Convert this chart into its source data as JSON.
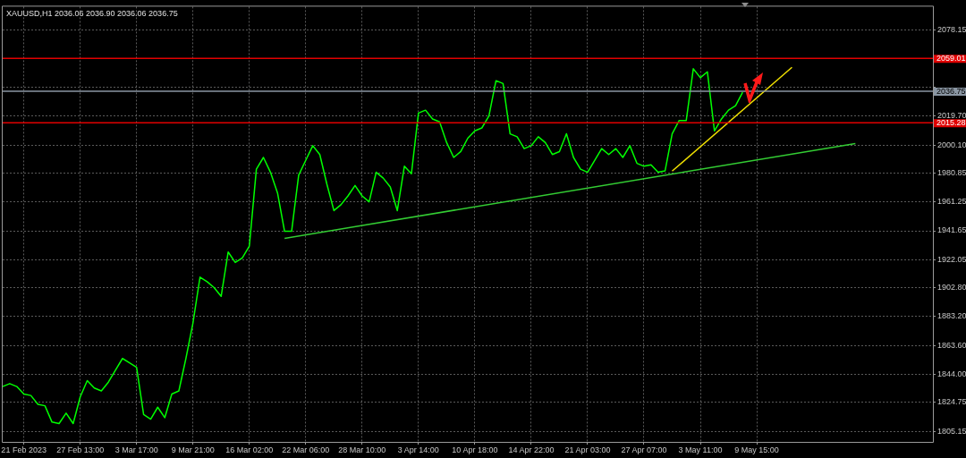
{
  "chart_data": {
    "type": "line",
    "title": "XAUUSD,H1 2036.06 2036.90 2036.06 2036.75",
    "categories": [
      null,
      null,
      null,
      "21 Feb 2023",
      null,
      null,
      null,
      null,
      null,
      null,
      null,
      "27 Feb 13:00",
      null,
      null,
      null,
      null,
      null,
      null,
      null,
      "3 Mar 17:00",
      null,
      null,
      null,
      null,
      null,
      null,
      null,
      "9 Mar 21:00",
      null,
      null,
      null,
      null,
      null,
      null,
      null,
      "16 Mar 02:00",
      null,
      null,
      null,
      null,
      null,
      null,
      null,
      "22 Mar 06:00",
      null,
      null,
      null,
      null,
      null,
      null,
      null,
      "28 Mar 10:00",
      null,
      null,
      null,
      null,
      null,
      null,
      null,
      "3 Apr 14:00",
      null,
      null,
      null,
      null,
      null,
      null,
      null,
      "10 Apr 18:00",
      null,
      null,
      null,
      null,
      null,
      null,
      null,
      "14 Apr 22:00",
      null,
      null,
      null,
      null,
      null,
      null,
      null,
      "21 Apr 03:00",
      null,
      null,
      null,
      null,
      null,
      null,
      null,
      "27 Apr 07:00",
      null,
      null,
      null,
      null,
      null,
      null,
      null,
      "3 May 11:00",
      null,
      null,
      null,
      null,
      null,
      null,
      null,
      "9 May 15:00",
      null,
      null,
      null,
      null,
      null,
      null,
      null,
      null,
      null,
      null,
      null,
      null,
      null,
      null,
      null,
      null,
      null,
      null,
      null,
      null,
      null,
      null,
      null,
      null,
      null
    ],
    "series": [
      {
        "color": "#00ff00",
        "values": [
          1835.6,
          1837.6,
          1835.6,
          1830.5,
          1829.5,
          1823.5,
          1822.5,
          1811.4,
          1810.4,
          1817.5,
          1810.4,
          1828.5,
          1839.6,
          1834.6,
          1832.6,
          1838.6,
          1846.7,
          1854.7,
          1851.7,
          1848.7,
          1816.5,
          1813.4,
          1821.5,
          1814.4,
          1830.5,
          1832.6,
          1854.7,
          1878.9,
          1910.1,
          1907.0,
          1903.0,
          1897.0,
          1927.2,
          1920.1,
          1923.2,
          1931.2,
          1983.6,
          1991.6,
          1981.5,
          1967.4,
          1941.3,
          1941.3,
          1979.5,
          1989.6,
          1999.6,
          1993.6,
          1973.5,
          1955.4,
          1959.4,
          1965.4,
          1972.5,
          1965.4,
          1961.4,
          1981.5,
          1977.5,
          1971.5,
          1955.4,
          1985.6,
          1980.5,
          2021.8,
          2023.8,
          2017.8,
          2015.8,
          2001.7,
          1991.6,
          1995.6,
          2004.7,
          2009.7,
          2011.7,
          2019.8,
          2043.9,
          2041.9,
          2007.7,
          2005.7,
          1997.6,
          1999.6,
          2005.7,
          2001.7,
          1993.6,
          1995.6,
          2007.7,
          1991.6,
          1983.6,
          1981.5,
          1989.6,
          1997.6,
          1993.6,
          1997.6,
          1991.6,
          1999.6,
          1987.6,
          1985.6,
          1986.6,
          1981.5,
          1982.5,
          2007.7,
          2016.8,
          2016.8,
          2052.0,
          2045.9,
          2049.9,
          2009.7,
          2017.8,
          2023.8,
          2026.8,
          2036.0,
          null,
          null,
          null,
          null,
          null,
          null,
          null,
          null,
          null,
          null,
          null,
          null,
          null,
          null,
          null,
          null,
          null,
          null,
          null,
          null,
          null,
          null,
          null,
          null,
          null,
          null,
          null
        ]
      },
      {
        "color": "#33cc33",
        "values": [
          null,
          null,
          null,
          null,
          null,
          null,
          null,
          null,
          null,
          null,
          null,
          null,
          null,
          null,
          null,
          null,
          null,
          null,
          null,
          null,
          null,
          null,
          null,
          null,
          null,
          null,
          null,
          null,
          null,
          null,
          null,
          null,
          null,
          null,
          null,
          null,
          null,
          null,
          null,
          null,
          1936.5,
          null,
          null,
          null,
          null,
          null,
          null,
          null,
          null,
          null,
          null,
          null,
          null,
          null,
          null,
          null,
          null,
          null,
          null,
          null,
          null,
          null,
          null,
          null,
          null,
          null,
          null,
          null,
          null,
          null,
          null,
          null,
          null,
          null,
          null,
          null,
          null,
          null,
          null,
          null,
          null,
          null,
          null,
          null,
          null,
          null,
          null,
          null,
          null,
          null,
          null,
          null,
          null,
          null,
          null,
          null,
          null,
          null,
          null,
          null,
          null,
          null,
          null,
          null,
          null,
          null,
          null,
          null,
          null,
          null,
          null,
          null,
          null,
          null,
          null,
          null,
          null,
          null,
          null,
          null,
          null,
          2001.0,
          null,
          null,
          null,
          null,
          null,
          null,
          null,
          null,
          null,
          null,
          null
        ]
      },
      {
        "color": "#f0e000",
        "values": [
          null,
          null,
          null,
          null,
          null,
          null,
          null,
          null,
          null,
          null,
          null,
          null,
          null,
          null,
          null,
          null,
          null,
          null,
          null,
          null,
          null,
          null,
          null,
          null,
          null,
          null,
          null,
          null,
          null,
          null,
          null,
          null,
          null,
          null,
          null,
          null,
          null,
          null,
          null,
          null,
          null,
          null,
          null,
          null,
          null,
          null,
          null,
          null,
          null,
          null,
          null,
          null,
          null,
          null,
          null,
          null,
          null,
          null,
          null,
          null,
          null,
          null,
          null,
          null,
          null,
          null,
          null,
          null,
          null,
          null,
          null,
          null,
          null,
          null,
          null,
          null,
          null,
          null,
          null,
          null,
          null,
          null,
          null,
          null,
          null,
          null,
          null,
          null,
          null,
          null,
          null,
          null,
          null,
          null,
          null,
          1982.3,
          null,
          null,
          null,
          null,
          null,
          null,
          null,
          null,
          null,
          null,
          null,
          null,
          null,
          null,
          null,
          null,
          2053.0,
          null,
          null,
          null,
          null,
          null,
          null,
          null,
          null,
          null,
          null,
          null,
          null,
          null,
          null,
          null,
          null,
          null,
          null,
          null,
          null
        ]
      }
    ],
    "ylim": [
      1797.9,
      2094.3
    ],
    "yticks": [
      2078.15,
      {
        "value": 2058.9,
        "label": null
      },
      {
        "value": 2039.3,
        "label": null
      },
      {
        "value": 2019.7,
        "label": "2019.70"
      },
      {
        "value": 2000.1,
        "label": "2000.10"
      },
      1980.85,
      1961.25,
      1941.65,
      1922.05,
      {
        "value": 1902.8,
        "label": "1902.80"
      },
      {
        "value": 1883.2,
        "label": "1883.20"
      },
      {
        "value": 1863.6,
        "label": "1863.60"
      },
      {
        "value": 1844,
        "label": "1844.00"
      },
      1824.75,
      1805.15
    ],
    "ref_lines": [
      {
        "axis": "y",
        "value": 2059.01,
        "label": "2059.01",
        "color": "#e00000"
      },
      {
        "axis": "y",
        "value": 2036.75,
        "label": "2036.75",
        "color": "#8a96a3"
      },
      {
        "axis": "y",
        "value": 2015.28,
        "label": "2015.28",
        "color": "#e00000"
      }
    ],
    "grid": true,
    "marker": "none",
    "line_style": "solid"
  }
}
